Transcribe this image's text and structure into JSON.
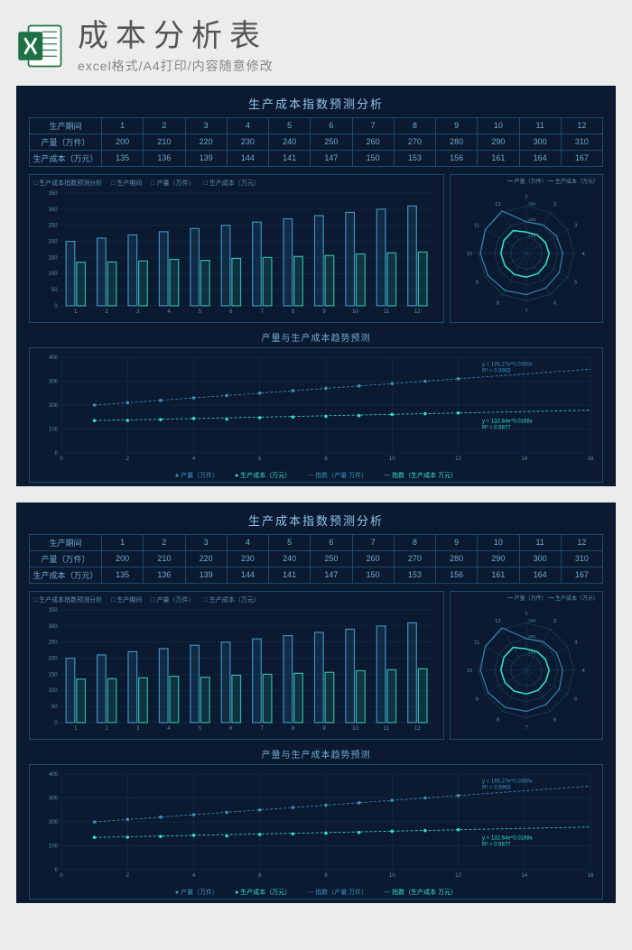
{
  "header": {
    "main_title": "成本分析表",
    "subtitle": "excel格式/A4打印/内容随意修改"
  },
  "dashboard": {
    "title": "生产成本指数预测分析",
    "table": {
      "row_labels": [
        "生产期间",
        "产量（万件）",
        "生产成本（万元）"
      ],
      "periods": [
        "1",
        "2",
        "3",
        "4",
        "5",
        "6",
        "7",
        "8",
        "9",
        "10",
        "11",
        "12"
      ],
      "production": [
        200,
        210,
        220,
        230,
        240,
        250,
        260,
        270,
        280,
        290,
        300,
        310
      ],
      "cost": [
        135,
        136,
        139,
        144,
        141,
        147,
        150,
        153,
        156,
        161,
        164,
        167
      ]
    },
    "bar_chart": {
      "type": "bar",
      "legend": [
        "生产成本指数预测分析",
        "生产期间",
        "产量（万件）",
        "生产成本（万元）"
      ],
      "y_ticks": [
        0,
        50,
        100,
        150,
        200,
        250,
        300,
        350
      ],
      "series1_color": "#3a8fbd",
      "series2_color": "#2fb5a0",
      "series1_values": [
        200,
        210,
        220,
        230,
        240,
        250,
        260,
        270,
        280,
        290,
        300,
        310
      ],
      "series2_values": [
        135,
        136,
        139,
        144,
        141,
        147,
        150,
        153,
        156,
        161,
        164,
        167
      ],
      "x_labels": [
        "1",
        "2",
        "3",
        "4",
        "5",
        "6",
        "7",
        "8",
        "9",
        "10",
        "11",
        "12"
      ],
      "grid_color": "#16324a",
      "bg_color": "#0b1a30"
    },
    "radar": {
      "type": "radar",
      "legend": [
        "产量（万件）",
        "生产成本（万元）"
      ],
      "axis_labels": [
        "1",
        "2",
        "3",
        "4",
        "5",
        "6",
        "7",
        "8",
        "9",
        "10",
        "11",
        "12"
      ],
      "rings": [
        100,
        200,
        300
      ],
      "series1_color": "#3a8fbd",
      "series2_color": "#2fe0c0",
      "ring_color": "#1a4a6e"
    },
    "trend_chart": {
      "type": "scatter_trend",
      "title": "产量与生产成本趋势预测",
      "y_ticks": [
        0,
        100,
        200,
        300,
        400
      ],
      "x_ticks": [
        0,
        2,
        4,
        6,
        8,
        10,
        12,
        14,
        16
      ],
      "series1": {
        "label": "产量（万件）",
        "color": "#3a8fbd",
        "values": [
          200,
          210,
          220,
          230,
          240,
          250,
          260,
          270,
          280,
          290,
          300,
          310
        ],
        "trend_label": "y = 195.27e^0.0385x",
        "r2_label": "R² = 0.9963"
      },
      "series2": {
        "label": "生产成本（万元）",
        "color": "#2fe0c0",
        "values": [
          135,
          136,
          139,
          144,
          141,
          147,
          150,
          153,
          156,
          161,
          164,
          167
        ],
        "trend_label": "y = 132.84e^0.0168x",
        "r2_label": "R² = 0.9877"
      },
      "legend": [
        "产量（万件）",
        "生产成本（万元）",
        "指数（产量 万件）",
        "指数（生产成本 万元）"
      ],
      "grid_color": "#16324a"
    }
  }
}
